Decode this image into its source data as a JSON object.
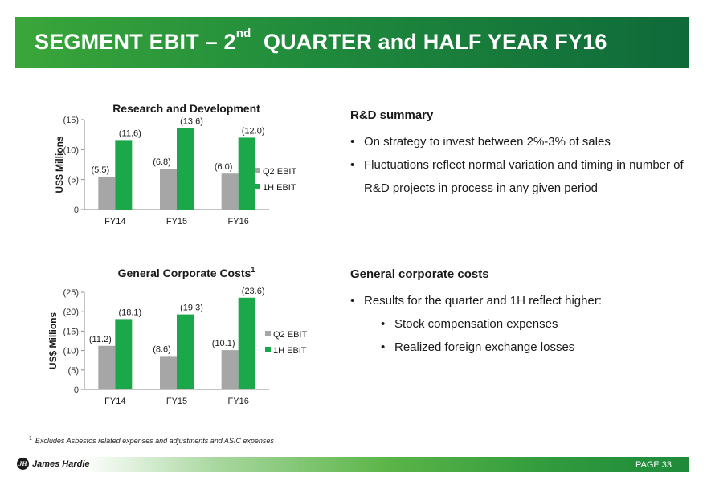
{
  "header": {
    "title_part1": "SEGMENT EBIT – 2",
    "title_sup": "nd",
    "title_part2": "QUARTER and HALF YEAR FY16"
  },
  "chart_data": [
    {
      "type": "bar",
      "title": "Research and Development",
      "title_footnote": "",
      "ylabel": "US$ Millions",
      "xlabel": "",
      "categories": [
        "FY14",
        "FY15",
        "FY16"
      ],
      "ylim": [
        0,
        15
      ],
      "yticks": [
        0,
        5,
        10,
        15
      ],
      "ytick_labels": [
        "0",
        "(5)",
        "(10)",
        "(15)"
      ],
      "series": [
        {
          "name": "Q2 EBIT",
          "color": "#a6a6a6",
          "values": [
            5.5,
            6.8,
            6.0
          ],
          "labels": [
            "(5.5)",
            "(6.8)",
            "(6.0)"
          ]
        },
        {
          "name": "1H EBIT",
          "color": "#1aa84a",
          "values": [
            11.6,
            13.6,
            12.0
          ],
          "labels": [
            "(11.6)",
            "(13.6)",
            "(12.0)"
          ]
        }
      ],
      "legend": "right"
    },
    {
      "type": "bar",
      "title": "General Corporate Costs",
      "title_footnote": "1",
      "ylabel": "US$ Millions",
      "xlabel": "",
      "categories": [
        "FY14",
        "FY15",
        "FY16"
      ],
      "ylim": [
        0,
        25
      ],
      "yticks": [
        0,
        5,
        10,
        15,
        20,
        25
      ],
      "ytick_labels": [
        "0",
        "(5)",
        "(10)",
        "(15)",
        "(20)",
        "(25)"
      ],
      "series": [
        {
          "name": "Q2 EBIT",
          "color": "#a6a6a6",
          "values": [
            11.2,
            8.6,
            10.1
          ],
          "labels": [
            "(11.2)",
            "(8.6)",
            "(10.1)"
          ]
        },
        {
          "name": "1H EBIT",
          "color": "#1aa84a",
          "values": [
            18.1,
            19.3,
            23.6
          ],
          "labels": [
            "(18.1)",
            "(19.3)",
            "(23.6)"
          ]
        }
      ],
      "legend": "right"
    }
  ],
  "rd_summary": {
    "heading": "R&D summary",
    "bullets": [
      "On strategy to invest between 2%-3% of sales",
      "Fluctuations reflect normal variation and timing in number of R&D projects in process in any given period"
    ]
  },
  "corporate_summary": {
    "heading": "General corporate costs",
    "bullet": "Results for the quarter and 1H reflect higher:",
    "sub_bullets": [
      "Stock compensation expenses",
      "Realized foreign exchange losses"
    ]
  },
  "footnote": {
    "marker": "1",
    "text": "Excludes Asbestos related expenses and adjustments and ASIC expenses"
  },
  "footer": {
    "company": "James Hardie",
    "logo_mark": "JH",
    "page_label": "PAGE  33"
  },
  "colors": {
    "banner_green": "#1f8a3c",
    "bar_green": "#1aa84a",
    "bar_gray": "#a6a6a6"
  }
}
